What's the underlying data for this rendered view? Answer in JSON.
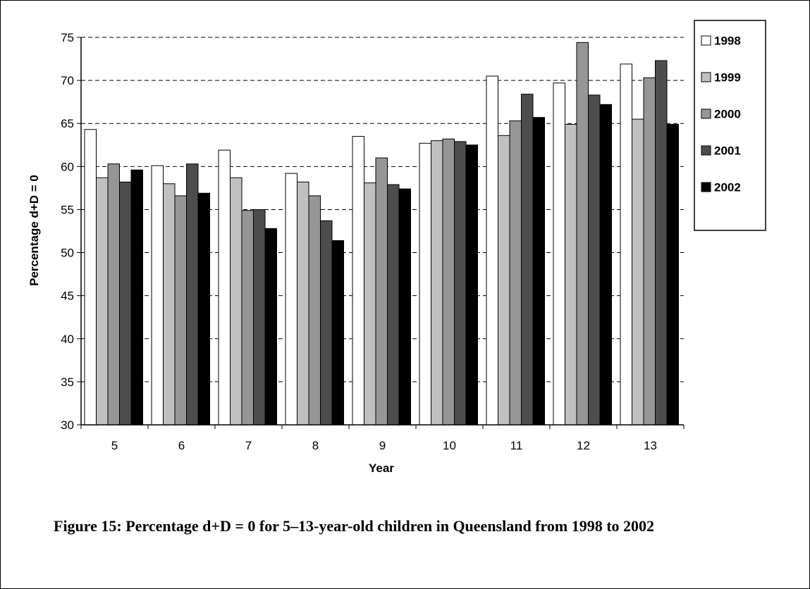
{
  "caption": "Figure 15:  Percentage d+D = 0  for 5–13-year-old children in Queensland from 1998 to 2002",
  "chart_data": {
    "type": "bar",
    "title": "",
    "xlabel": "Year",
    "ylabel": "Percentage d+D = 0",
    "ylim": [
      30,
      75
    ],
    "yticks": [
      30,
      35,
      40,
      45,
      50,
      55,
      60,
      65,
      70,
      75
    ],
    "grid": true,
    "legend_position": "right",
    "categories": [
      "5",
      "6",
      "7",
      "8",
      "9",
      "10",
      "11",
      "12",
      "13"
    ],
    "series": [
      {
        "name": "1998",
        "color": "#ffffff",
        "values": [
          64.3,
          60.1,
          61.9,
          59.2,
          63.5,
          62.7,
          70.5,
          69.7,
          71.9
        ]
      },
      {
        "name": "1999",
        "color": "#c0c0c0",
        "values": [
          58.7,
          58.0,
          58.7,
          58.2,
          58.1,
          63.0,
          63.6,
          64.9,
          65.5
        ]
      },
      {
        "name": "2000",
        "color": "#969696",
        "values": [
          60.3,
          56.6,
          54.9,
          56.6,
          61.0,
          63.2,
          65.3,
          74.4,
          70.3
        ]
      },
      {
        "name": "2001",
        "color": "#4d4d4d",
        "values": [
          58.2,
          60.3,
          55.0,
          53.7,
          57.9,
          62.9,
          68.4,
          68.3,
          72.3
        ]
      },
      {
        "name": "2002",
        "color": "#000000",
        "values": [
          59.6,
          56.9,
          52.8,
          51.4,
          57.4,
          62.5,
          65.7,
          67.2,
          64.9
        ]
      }
    ]
  }
}
